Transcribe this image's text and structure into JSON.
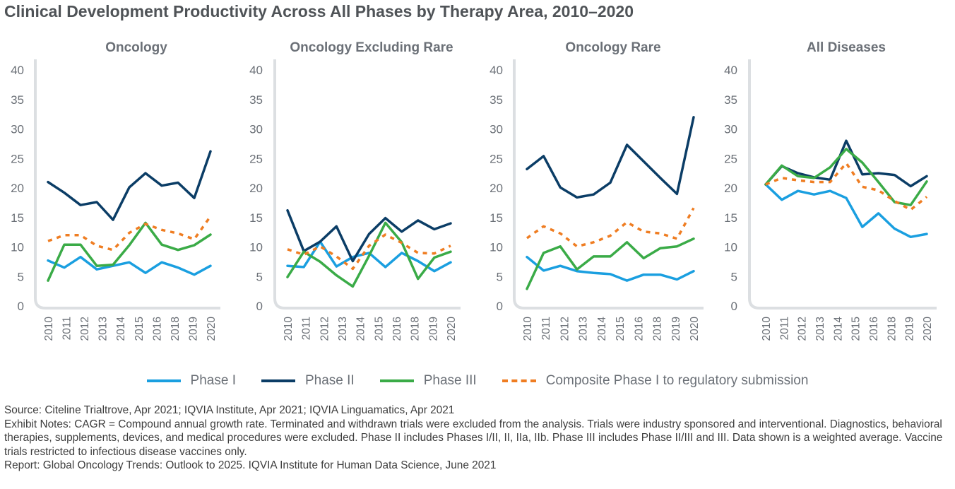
{
  "title": "Clinical Development Productivity Across All Phases by Therapy Area, 2010–2020",
  "legend": [
    {
      "name": "Phase I",
      "color": "#1a9fe0",
      "style": "solid"
    },
    {
      "name": "Phase II",
      "color": "#0b3d66",
      "style": "solid"
    },
    {
      "name": "Phase III",
      "color": "#3aab47",
      "style": "solid"
    },
    {
      "name": "Composite Phase I to regulatory submission",
      "color": "#ef7d22",
      "style": "dashed"
    }
  ],
  "chart_data": [
    {
      "type": "line",
      "title": "Oncology",
      "categories": [
        "2010",
        "2011",
        "2012",
        "2013",
        "2014",
        "2015",
        "2016",
        "2017",
        "2018",
        "2019",
        "2020"
      ],
      "x_tick_labels": [
        "2010",
        "2011",
        "2012",
        "2013",
        "2014",
        "2015",
        "2016",
        "2018",
        "2019",
        "2020"
      ],
      "y_ticks": [
        "0",
        "5",
        "10",
        "15",
        "20",
        "25",
        "30",
        "35",
        "40"
      ],
      "ylim": [
        0,
        40
      ],
      "series": [
        {
          "name": "Phase I",
          "values": [
            7.7,
            6.5,
            8.3,
            6.2,
            6.8,
            7.4,
            5.6,
            7.4,
            6.5,
            5.3,
            6.8
          ]
        },
        {
          "name": "Phase II",
          "values": [
            21.0,
            19.2,
            17.1,
            17.6,
            14.6,
            20.1,
            22.5,
            20.4,
            20.9,
            18.3,
            26.2
          ]
        },
        {
          "name": "Phase III",
          "values": [
            4.3,
            10.4,
            10.4,
            6.8,
            7.0,
            10.3,
            14.1,
            10.4,
            9.5,
            10.3,
            12.1
          ]
        },
        {
          "name": "Composite Phase I to regulatory submission",
          "values": [
            11.0,
            12.0,
            12.0,
            10.2,
            9.5,
            12.4,
            13.9,
            12.9,
            12.3,
            11.3,
            15.2
          ]
        }
      ]
    },
    {
      "type": "line",
      "title": "Oncology Excluding Rare",
      "categories": [
        "2010",
        "2011",
        "2012",
        "2013",
        "2014",
        "2015",
        "2016",
        "2017",
        "2018",
        "2019",
        "2020"
      ],
      "x_tick_labels": [
        "2010",
        "2011",
        "2012",
        "2013",
        "2014",
        "2015",
        "2016",
        "2018",
        "2019",
        "2020"
      ],
      "y_ticks": [
        "0",
        "5",
        "10",
        "15",
        "20",
        "25",
        "30",
        "35",
        "40"
      ],
      "ylim": [
        0,
        40
      ],
      "series": [
        {
          "name": "Phase I",
          "values": [
            6.8,
            6.6,
            10.9,
            6.7,
            8.3,
            9.0,
            6.6,
            9.0,
            7.6,
            5.9,
            7.4
          ]
        },
        {
          "name": "Phase II",
          "values": [
            16.2,
            9.3,
            10.9,
            13.5,
            7.6,
            12.2,
            14.9,
            12.6,
            14.5,
            13.0,
            14.0
          ]
        },
        {
          "name": "Phase III",
          "values": [
            4.9,
            9.2,
            7.5,
            5.2,
            3.3,
            8.5,
            14.1,
            10.8,
            4.6,
            8.2,
            9.2
          ]
        },
        {
          "name": "Composite Phase I to regulatory submission",
          "values": [
            9.6,
            8.7,
            10.1,
            8.4,
            6.3,
            10.2,
            12.1,
            10.7,
            9.0,
            8.9,
            10.2
          ]
        }
      ]
    },
    {
      "type": "line",
      "title": "Oncology Rare",
      "categories": [
        "2010",
        "2011",
        "2012",
        "2013",
        "2014",
        "2015",
        "2016",
        "2017",
        "2018",
        "2019",
        "2020"
      ],
      "x_tick_labels": [
        "2010",
        "2011",
        "2012",
        "2013",
        "2014",
        "2015",
        "2016",
        "2018",
        "2019",
        "2020"
      ],
      "y_ticks": [
        "0",
        "5",
        "10",
        "15",
        "20",
        "25",
        "30",
        "35",
        "40"
      ],
      "ylim": [
        0,
        40
      ],
      "series": [
        {
          "name": "Phase I",
          "values": [
            8.3,
            6.0,
            6.8,
            5.9,
            5.6,
            5.4,
            4.3,
            5.3,
            5.3,
            4.5,
            5.9
          ]
        },
        {
          "name": "Phase II",
          "values": [
            23.2,
            25.4,
            20.1,
            18.4,
            18.9,
            20.9,
            27.3,
            24.5,
            21.7,
            19.0,
            32.0
          ]
        },
        {
          "name": "Phase III",
          "values": [
            2.9,
            9.0,
            10.1,
            6.2,
            8.4,
            8.4,
            10.8,
            8.1,
            9.8,
            10.1,
            11.4
          ]
        },
        {
          "name": "Composite Phase I to regulatory submission",
          "values": [
            11.5,
            13.5,
            12.3,
            10.1,
            10.8,
            11.9,
            14.2,
            12.6,
            12.3,
            11.4,
            16.6
          ]
        }
      ]
    },
    {
      "type": "line",
      "title": "All Diseases",
      "categories": [
        "2010",
        "2011",
        "2012",
        "2013",
        "2014",
        "2015",
        "2016",
        "2017",
        "2018",
        "2019",
        "2020"
      ],
      "x_tick_labels": [
        "2010",
        "2011",
        "2012",
        "2013",
        "2014",
        "2015",
        "2016",
        "2018",
        "2019",
        "2020"
      ],
      "y_ticks": [
        "0",
        "5",
        "10",
        "15",
        "20",
        "25",
        "30",
        "35",
        "40"
      ],
      "ylim": [
        0,
        40
      ],
      "series": [
        {
          "name": "Phase I",
          "values": [
            20.6,
            18.0,
            19.5,
            18.9,
            19.5,
            18.3,
            13.4,
            15.7,
            13.1,
            11.7,
            12.2
          ]
        },
        {
          "name": "Phase II",
          "values": [
            20.6,
            23.7,
            22.5,
            21.8,
            21.4,
            28.0,
            22.3,
            22.5,
            22.2,
            20.3,
            22.0
          ]
        },
        {
          "name": "Phase III",
          "values": [
            20.6,
            23.8,
            22.0,
            21.7,
            23.5,
            26.6,
            24.3,
            21.0,
            17.6,
            17.1,
            21.1
          ]
        },
        {
          "name": "Composite Phase I to regulatory submission",
          "values": [
            20.6,
            21.7,
            21.3,
            21.0,
            21.0,
            24.2,
            20.2,
            19.6,
            17.8,
            16.3,
            18.5
          ]
        }
      ]
    }
  ],
  "notes": {
    "source": "Source: Citeline Trialtrove, Apr 2021; IQVIA Institute, Apr 2021; IQVIA Linguamatics, Apr 2021",
    "exhibit_notes": "Exhibit Notes: CAGR = Compound annual growth rate. Terminated and withdrawn trials were excluded from the analysis. Trials were industry sponsored and interventional. Diagnostics, behavioral therapies, supplements, devices, and medical procedures were excluded. Phase II includes Phases I/II, II, IIa, IIb. Phase III includes Phase II/III and III. Data shown is a weighted average. Vaccine trials restricted to infectious disease vaccines only.",
    "report": "Report: Global Oncology Trends: Outlook to 2025. IQVIA Institute for Human Data Science, June 2021"
  }
}
